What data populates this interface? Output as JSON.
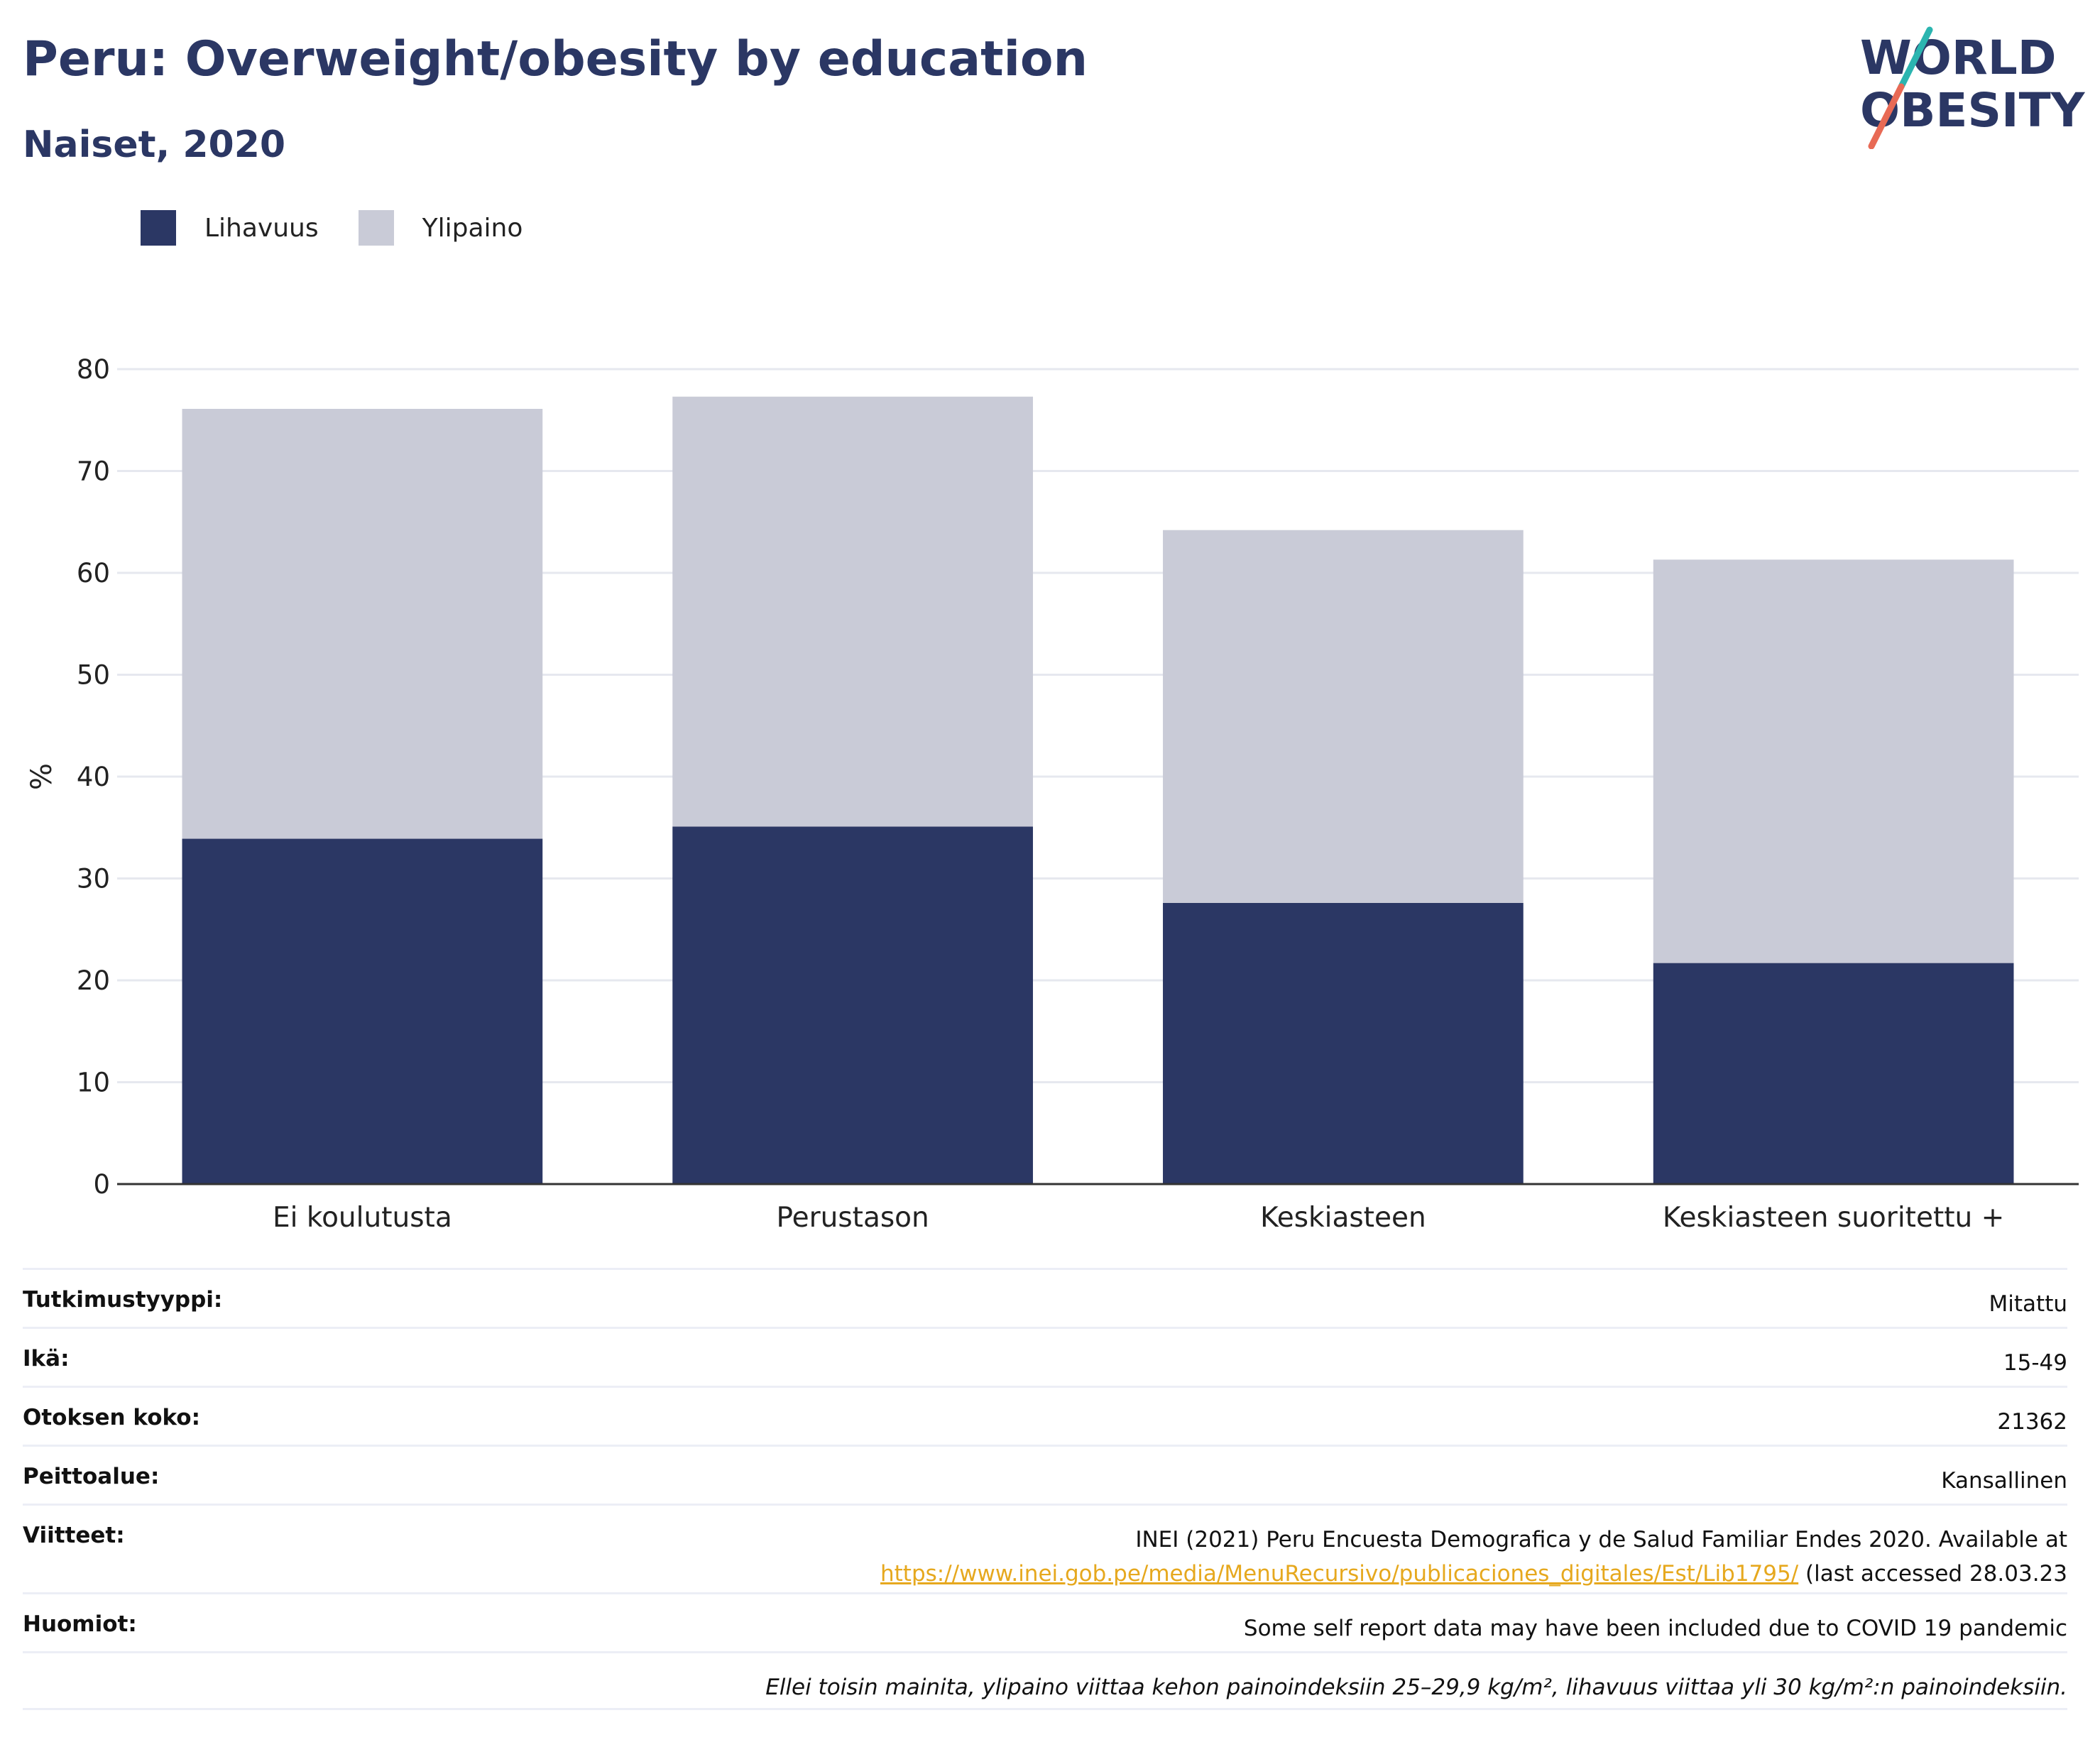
{
  "header": {
    "title": "Peru: Overweight/obesity by education",
    "subtitle": "Naiset, 2020"
  },
  "logo": {
    "line1": "WORLD",
    "line2": "OBESITY"
  },
  "legend": [
    {
      "label": "Lihavuus",
      "color": "#2b3764"
    },
    {
      "label": "Ylipaino",
      "color": "#c9cbd7"
    }
  ],
  "chart_data": {
    "type": "bar",
    "stacked": true,
    "categories": [
      "Ei koulutusta",
      "Perustason",
      "Keskiasteen",
      "Keskiasteen suoritettu +"
    ],
    "series": [
      {
        "name": "Lihavuus",
        "color": "#2b3764",
        "values": [
          33.9,
          35.1,
          27.6,
          21.7
        ]
      },
      {
        "name": "Ylipaino",
        "color": "#c9cbd7",
        "values": [
          42.2,
          42.2,
          36.6,
          39.6
        ]
      }
    ],
    "ylabel": "%",
    "ylim": [
      0,
      80
    ],
    "yticks": [
      0,
      10,
      20,
      30,
      40,
      50,
      60,
      70,
      80
    ],
    "grid": true
  },
  "meta": {
    "study_type": {
      "label": "Tutkimustyyppi:",
      "value": "Mitattu"
    },
    "age": {
      "label": "Ikä:",
      "value": "15-49"
    },
    "sample_size": {
      "label": "Otoksen koko:",
      "value": "21362"
    },
    "coverage": {
      "label": "Peittoalue:",
      "value": "Kansallinen"
    },
    "references": {
      "label": "Viitteet:",
      "text": "INEI (2021) Peru Encuesta Demografica y de Salud Familiar Endes 2020. Available at",
      "link": "https://www.inei.gob.pe/media/MenuRecursivo/publicaciones_digitales/Est/Lib1795/",
      "suffix": " (last accessed 28.03.23"
    },
    "notes": {
      "label": "Huomiot:",
      "value": "Some self report data may have been included due to COVID 19 pandemic"
    },
    "footnote": "Ellei toisin mainita, ylipaino viittaa kehon painoindeksiin 25–29,9 kg/m², lihavuus viittaa yli 30 kg/m²:n painoindeksiin."
  }
}
